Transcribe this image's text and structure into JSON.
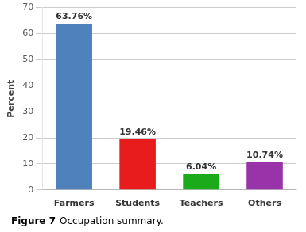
{
  "chart_data": {
    "type": "bar",
    "categories": [
      "Farmers",
      "Students",
      "Teachers",
      "Others"
    ],
    "values": [
      63.76,
      19.46,
      6.04,
      10.74
    ],
    "value_labels": [
      "63.76%",
      "19.46%",
      "6.04%",
      "10.74%"
    ],
    "data_labels": true,
    "colors": [
      "#4f81bd",
      "#e81c1c",
      "#1aaa1a",
      "#9933aa"
    ],
    "ylabel": "Percent",
    "ylim": [
      0,
      70
    ],
    "yticks": [
      0,
      10,
      20,
      30,
      40,
      50,
      60,
      70
    ],
    "grid": true,
    "annotations": [
      "Figure 7",
      "Occupation summary."
    ]
  }
}
